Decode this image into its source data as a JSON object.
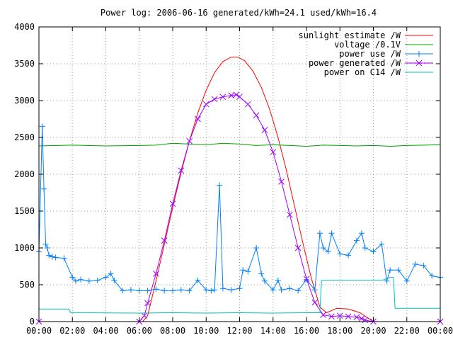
{
  "chart_data": {
    "type": "line",
    "title": "Power log: 2006-06-16 generated/kWh=24.1 used/kWh=16.4",
    "xlabel": "",
    "ylabel": "",
    "xlim": [
      0,
      24
    ],
    "ylim": [
      0,
      4000
    ],
    "grid": true,
    "legend_position": "top-right",
    "x_tick_labels": [
      "00:00",
      "02:00",
      "04:00",
      "06:00",
      "08:00",
      "10:00",
      "12:00",
      "14:00",
      "16:00",
      "18:00",
      "20:00",
      "22:00",
      "00:00"
    ],
    "y_tick_labels": [
      "0",
      "500",
      "1000",
      "1500",
      "2000",
      "2500",
      "3000",
      "3500",
      "4000"
    ],
    "series": [
      {
        "name": "sunlight estimate /W",
        "color": "#ff0000",
        "marker": "none",
        "x": [
          0,
          6.2,
          6.5,
          7,
          7.5,
          8,
          8.5,
          9,
          9.5,
          10,
          10.5,
          11,
          11.5,
          11.9,
          12.3,
          12.8,
          13.3,
          13.8,
          14.3,
          14.8,
          15.3,
          15.8,
          16.3,
          16.8,
          17.2,
          17.5,
          17.8,
          18.5,
          19.2,
          19.6,
          20,
          24
        ],
        "y": [
          0,
          0,
          80,
          550,
          1050,
          1550,
          2020,
          2450,
          2830,
          3140,
          3380,
          3530,
          3590,
          3590,
          3540,
          3400,
          3180,
          2880,
          2500,
          2050,
          1550,
          1050,
          580,
          200,
          120,
          150,
          180,
          170,
          120,
          60,
          0,
          0
        ]
      },
      {
        "name": "voltage /0.1V",
        "color": "#00a000",
        "marker": "none",
        "x": [
          0,
          2,
          4,
          6,
          7,
          8,
          9,
          10,
          11,
          12,
          13,
          14,
          15,
          16,
          17,
          18,
          19,
          20,
          21,
          22,
          23,
          24
        ],
        "y": [
          2385,
          2395,
          2385,
          2390,
          2395,
          2420,
          2410,
          2400,
          2420,
          2410,
          2390,
          2400,
          2390,
          2380,
          2395,
          2390,
          2385,
          2390,
          2380,
          2390,
          2395,
          2400
        ]
      },
      {
        "name": "power use /W",
        "color": "#0080ff",
        "marker": "plus",
        "x": [
          0,
          0.2,
          0.3,
          0.4,
          0.5,
          0.6,
          0.8,
          1,
          1.5,
          2,
          2.2,
          2.5,
          3,
          3.5,
          4,
          4.3,
          4.5,
          5,
          5.5,
          6,
          6.5,
          7,
          7.5,
          8,
          8.5,
          9,
          9.5,
          10,
          10.3,
          10.5,
          10.8,
          11,
          11.5,
          12,
          12.2,
          12.5,
          13,
          13.3,
          13.5,
          14,
          14.3,
          14.5,
          15,
          15.5,
          16,
          16.5,
          16.8,
          17,
          17.3,
          17.5,
          18,
          18.5,
          19,
          19.3,
          19.5,
          20,
          20.5,
          20.8,
          21,
          21.5,
          22,
          22.5,
          23,
          23.5,
          24
        ],
        "y": [
          950,
          2650,
          1800,
          1050,
          1000,
          900,
          880,
          870,
          860,
          600,
          550,
          570,
          550,
          560,
          600,
          650,
          560,
          420,
          430,
          420,
          420,
          440,
          420,
          420,
          430,
          420,
          560,
          430,
          420,
          430,
          1850,
          450,
          430,
          450,
          700,
          680,
          1000,
          650,
          550,
          430,
          560,
          430,
          450,
          420,
          570,
          430,
          1200,
          1000,
          950,
          1200,
          920,
          900,
          1100,
          1200,
          1000,
          950,
          1050,
          550,
          700,
          700,
          550,
          780,
          760,
          620,
          600
        ]
      },
      {
        "name": "power generated /W",
        "color": "#a000ff",
        "marker": "x",
        "x": [
          0,
          6,
          6.3,
          6.5,
          7,
          7.5,
          8,
          8.5,
          9,
          9.5,
          10,
          10.5,
          11,
          11.5,
          11.8,
          12,
          12.5,
          13,
          13.5,
          14,
          14.5,
          15,
          15.5,
          16,
          16.5,
          17,
          17.5,
          18,
          18.5,
          19,
          19.3,
          19.5,
          20,
          24
        ],
        "y": [
          0,
          0,
          80,
          250,
          650,
          1100,
          1600,
          2050,
          2450,
          2750,
          2950,
          3020,
          3050,
          3070,
          3080,
          3050,
          2950,
          2800,
          2600,
          2300,
          1900,
          1450,
          1000,
          580,
          260,
          90,
          70,
          80,
          70,
          60,
          40,
          20,
          0,
          0
        ]
      },
      {
        "name": "power on C14 /W",
        "color": "#00c0c0",
        "marker": "none",
        "x": [
          0,
          1.8,
          1.9,
          6,
          8,
          10,
          12,
          14,
          16,
          16.8,
          16.9,
          20,
          20.5,
          21,
          21.2,
          21.3,
          24
        ],
        "y": [
          170,
          170,
          120,
          115,
          120,
          115,
          120,
          115,
          120,
          120,
          560,
          560,
          560,
          600,
          600,
          180,
          180
        ]
      }
    ]
  }
}
